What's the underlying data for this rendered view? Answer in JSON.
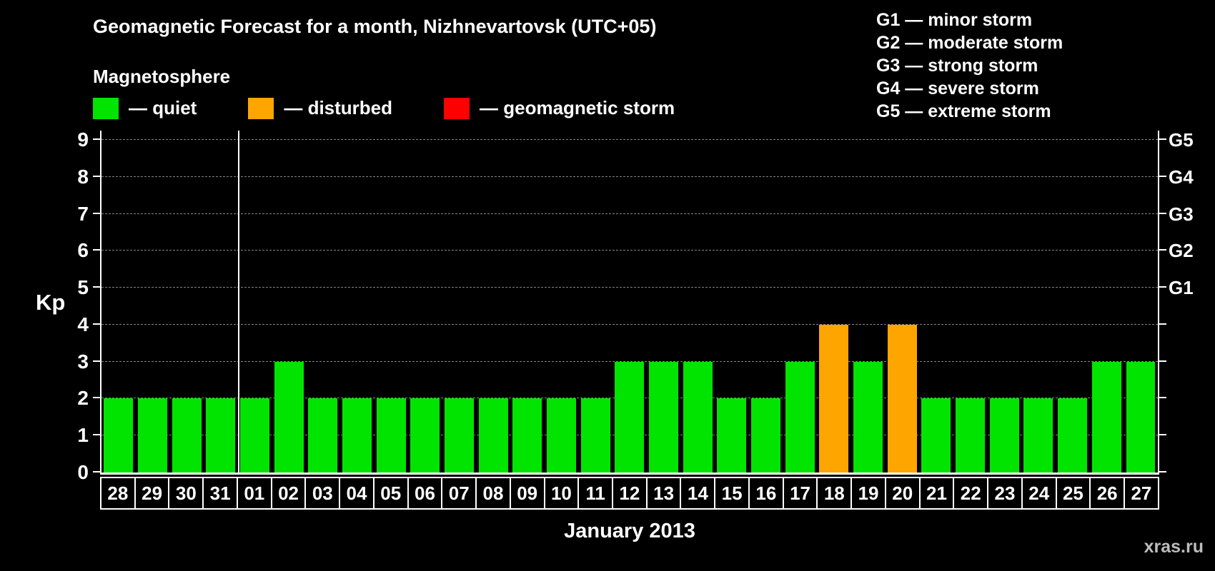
{
  "title": "Geomagnetic Forecast for a month, Nizhnevartovsk (UTC+05)",
  "subtitle": "Magnetosphere",
  "legend": {
    "items": [
      {
        "label": "— quiet",
        "status": "quiet",
        "color": "#00E400"
      },
      {
        "label": "— disturbed",
        "status": "disturbed",
        "color": "#FFA500"
      },
      {
        "label": "— geomagnetic storm",
        "status": "storm",
        "color": "#FF0000"
      }
    ]
  },
  "storm_scale": [
    "G1 — minor storm",
    "G2 — moderate storm",
    "G3 — strong storm",
    "G4 — severe storm",
    "G5 — extreme storm"
  ],
  "watermark": "xras.ru",
  "chart_data": {
    "type": "bar",
    "title": "Geomagnetic Forecast for a month, Nizhnevartovsk (UTC+05)",
    "xlabel": "January 2013",
    "ylabel": "Kp",
    "ylim": [
      0,
      9
    ],
    "yticks": [
      0,
      1,
      2,
      3,
      4,
      5,
      6,
      7,
      8,
      9
    ],
    "grid": "horizontal-dashed",
    "legend_position": "top",
    "right_axis": [
      {
        "label": "G1",
        "value": 5
      },
      {
        "label": "G2",
        "value": 6
      },
      {
        "label": "G3",
        "value": 7
      },
      {
        "label": "G4",
        "value": 8
      },
      {
        "label": "G5",
        "value": 9
      }
    ],
    "categories": [
      "28",
      "29",
      "30",
      "31",
      "01",
      "02",
      "03",
      "04",
      "05",
      "06",
      "07",
      "08",
      "09",
      "10",
      "11",
      "12",
      "13",
      "14",
      "15",
      "16",
      "17",
      "18",
      "19",
      "20",
      "21",
      "22",
      "23",
      "24",
      "25",
      "26",
      "27"
    ],
    "values": [
      2,
      2,
      2,
      2,
      2,
      3,
      2,
      2,
      2,
      2,
      2,
      2,
      2,
      2,
      2,
      3,
      3,
      3,
      2,
      2,
      3,
      4,
      3,
      4,
      2,
      2,
      2,
      2,
      2,
      3,
      3
    ],
    "statuses": [
      "quiet",
      "quiet",
      "quiet",
      "quiet",
      "quiet",
      "quiet",
      "quiet",
      "quiet",
      "quiet",
      "quiet",
      "quiet",
      "quiet",
      "quiet",
      "quiet",
      "quiet",
      "quiet",
      "quiet",
      "quiet",
      "quiet",
      "quiet",
      "quiet",
      "disturbed",
      "quiet",
      "disturbed",
      "quiet",
      "quiet",
      "quiet",
      "quiet",
      "quiet",
      "quiet",
      "quiet"
    ],
    "bar_colors": {
      "quiet": "#00E400",
      "disturbed": "#FFA500",
      "storm": "#FF0000"
    },
    "month_boundary_index": 4
  }
}
